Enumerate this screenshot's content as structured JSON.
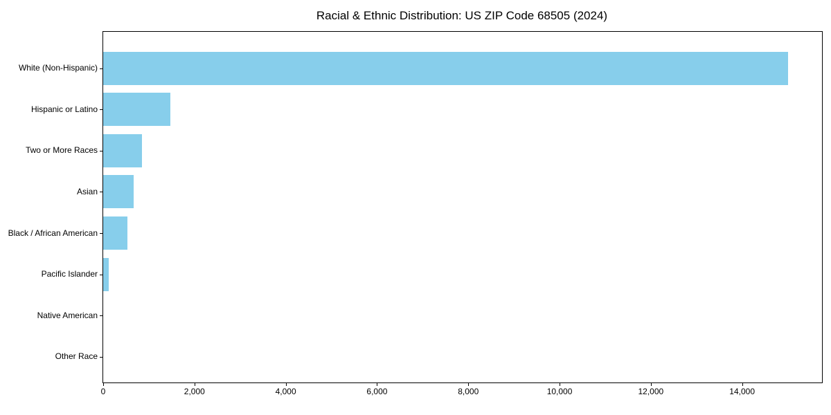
{
  "figure": {
    "background": "#ffffff"
  },
  "chart_data": {
    "type": "bar",
    "orientation": "horizontal",
    "title": "Racial & Ethnic Distribution: US ZIP Code 68505 (2024)",
    "categories": [
      "White (Non-Hispanic)",
      "Hispanic or Latino",
      "Two or More Races",
      "Asian",
      "Black / African American",
      "Pacific Islander",
      "Native American",
      "Other Race"
    ],
    "values": [
      15000,
      1470,
      855,
      665,
      525,
      115,
      0,
      0
    ],
    "xlabel": "",
    "ylabel": "",
    "xlim": [
      0,
      15750
    ],
    "xticks": [
      0,
      2000,
      4000,
      6000,
      8000,
      10000,
      12000,
      14000
    ],
    "xtick_labels": [
      "0",
      "2,000",
      "4,000",
      "6,000",
      "8,000",
      "10,000",
      "12,000",
      "14,000"
    ],
    "grid": false,
    "legend": false,
    "bar_color": "#87CEEB",
    "axis_color": "#000000",
    "text_color": "#000000"
  }
}
